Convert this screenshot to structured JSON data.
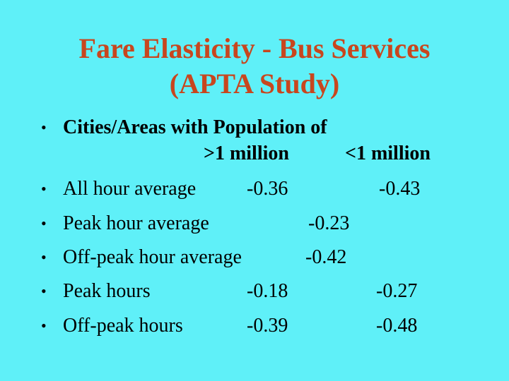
{
  "title": {
    "line1": "Fare Elasticity - Bus Services",
    "line2": "(APTA Study)"
  },
  "bullet_glyph": "•",
  "intro": {
    "label": "Cities/Areas with Population of",
    "col1_header": ">1 million",
    "col2_header": "<1 million"
  },
  "rows": [
    {
      "label": "All hour average",
      "over_1m": "-0.36",
      "under_1m": "-0.43"
    },
    {
      "label": "Peak hour average",
      "combined": "-0.23"
    },
    {
      "label": "Off-peak hour average",
      "combined": "-0.42"
    },
    {
      "label": "Peak hours",
      "over_1m": "-0.18",
      "under_1m": "-0.27"
    },
    {
      "label": "Off-peak hours",
      "over_1m": "-0.39",
      "under_1m": "-0.48"
    }
  ],
  "colors": {
    "background": "#5ff0f8",
    "title": "#c8461e",
    "text": "#000000"
  }
}
